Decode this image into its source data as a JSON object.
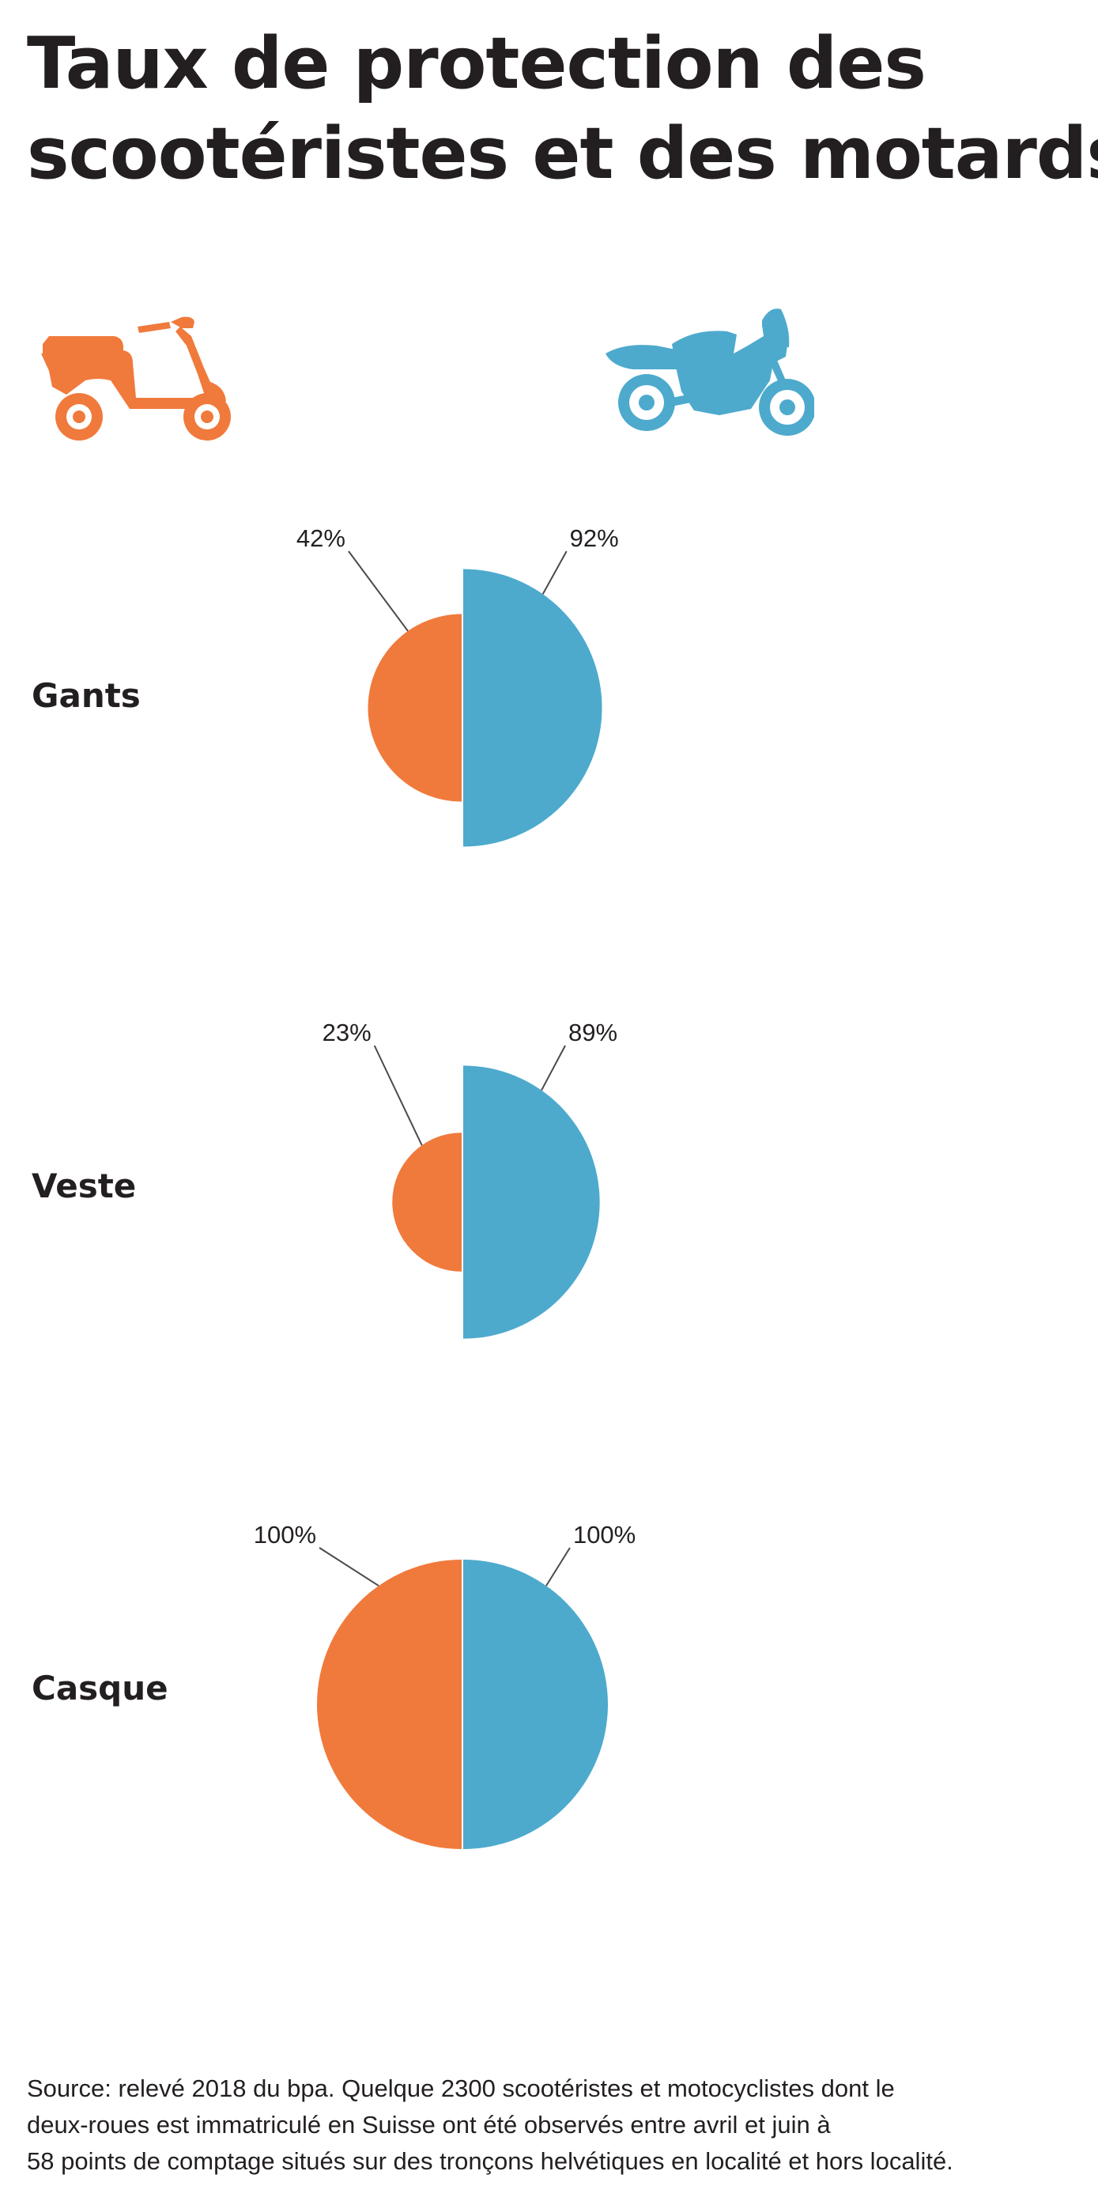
{
  "title": {
    "line1": "Taux de protection des",
    "line2": "scootéristes et des motards"
  },
  "icons": {
    "left": "scooter-icon",
    "right": "motorcycle-icon"
  },
  "colors": {
    "scooter": "#f07a3c",
    "motorcycle": "#4daacd",
    "text": "#231f20",
    "leader": "#4a4a4a"
  },
  "chart_data": {
    "type": "pie",
    "subtype": "half-circle comparison (left half = scootéristes, right half = motards); radius proportional to sqrt(rate)",
    "series": [
      {
        "icon": "scooter-icon",
        "color": "#f07a3c",
        "values": [
          42,
          23,
          100
        ],
        "labels": [
          "42%",
          "23%",
          "100%"
        ]
      },
      {
        "icon": "motorcycle-icon",
        "color": "#4daacd",
        "values": [
          92,
          89,
          100
        ],
        "labels": [
          "92%",
          "89%",
          "100%"
        ]
      }
    ],
    "categories": [
      "Gants",
      "Veste",
      "Casque"
    ],
    "unit": "%",
    "max": 100
  },
  "source": {
    "line1": "Source: relevé 2018 du bpa. Quelque 2300 scootéristes et motocyclistes dont le",
    "line2": "deux-roues est immatriculé en Suisse ont été observés entre avril et juin à",
    "line3": "58 points de comptage situés sur des tronçons helvétiques en localité et hors localité."
  }
}
